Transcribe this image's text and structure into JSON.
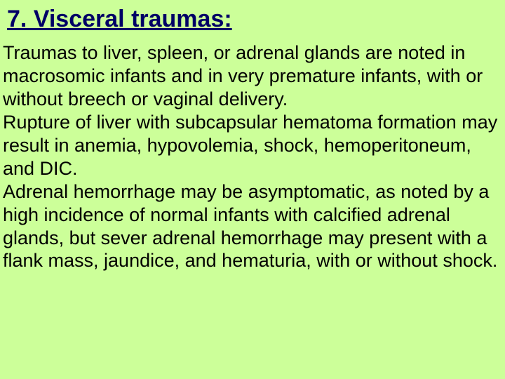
{
  "slide": {
    "background_color": "#ccff99",
    "heading": {
      "text": "7. Visceral traumas:",
      "color": "#000066",
      "font_size": 34,
      "font_weight": "bold",
      "underline": true
    },
    "body": {
      "color": "#000000",
      "font_size": 27,
      "paragraphs": [
        "Traumas to liver, spleen, or adrenal glands are noted in macrosomic infants and in very premature infants, with or without breech or vaginal delivery.",
        "Rupture of liver with subcapsular hematoma formation may result in anemia, hypovolemia, shock, hemoperitoneum, and DIC.",
        "Adrenal hemorrhage may be asymptomatic, as noted by a high incidence of normal infants with calcified adrenal glands, but sever adrenal hemorrhage may present with a flank mass, jaundice, and hematuria, with or without shock."
      ]
    }
  }
}
